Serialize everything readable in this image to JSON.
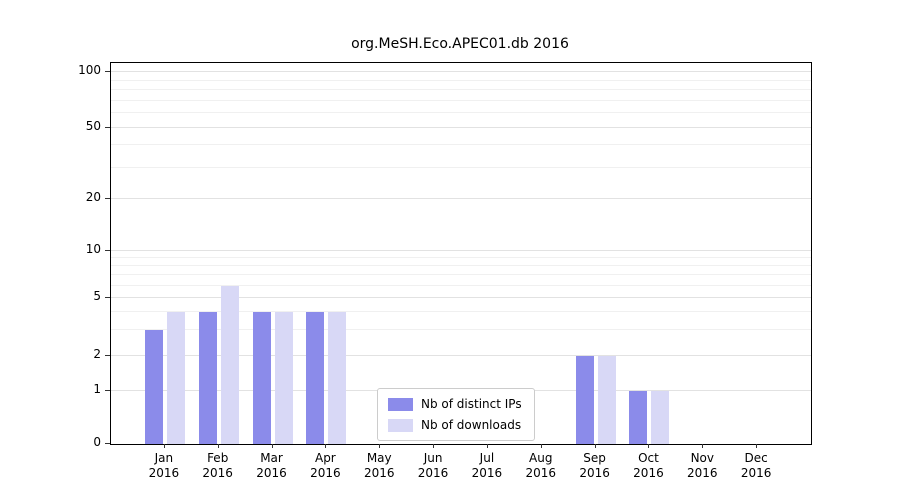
{
  "title": "org.MeSH.Eco.APEC01.db 2016",
  "chart_data": {
    "type": "bar",
    "title": "org.MeSH.Eco.APEC01.db 2016",
    "xlabel": "",
    "ylabel": "",
    "x_tick_months": [
      "Jan",
      "Feb",
      "Mar",
      "Apr",
      "May",
      "Jun",
      "Jul",
      "Aug",
      "Sep",
      "Oct",
      "Nov",
      "Dec"
    ],
    "x_tick_year": "2016",
    "series": [
      {
        "name": "Nb of distinct IPs",
        "color": "#8b8bea",
        "values": [
          3,
          4,
          4,
          4,
          0,
          0,
          0,
          0,
          2,
          1,
          0,
          0
        ]
      },
      {
        "name": "Nb of downloads",
        "color": "#d8d8f6",
        "values": [
          4,
          6,
          4,
          4,
          0,
          0,
          0,
          0,
          2,
          1,
          0,
          0
        ]
      }
    ],
    "yticks": [
      0,
      1,
      2,
      5,
      10,
      20,
      50,
      100
    ],
    "yscale": "log-like",
    "ylim": [
      0,
      110
    ],
    "grid": true,
    "legend_position": "lower center"
  }
}
